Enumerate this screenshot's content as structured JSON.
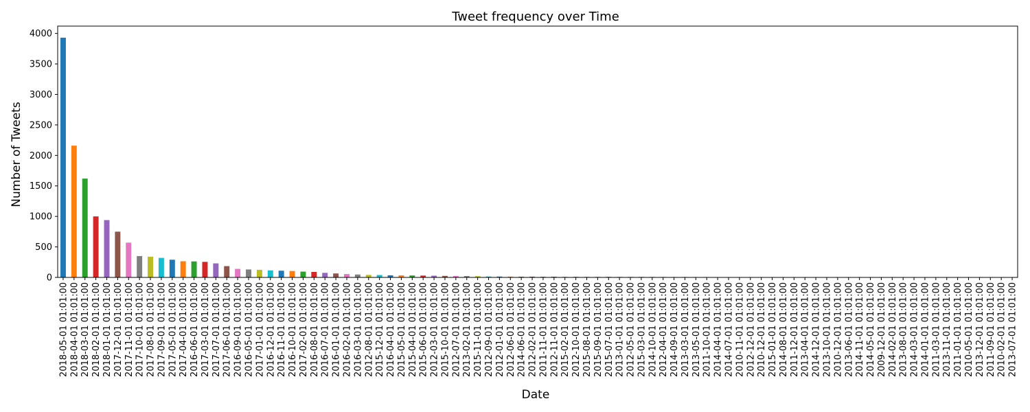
{
  "chart_data": {
    "type": "bar",
    "title": "Tweet frequency over Time",
    "xlabel": "Date",
    "ylabel": "Number of Tweets",
    "ylim": [
      0,
      4120
    ],
    "yticks": [
      0,
      500,
      1000,
      1500,
      2000,
      2500,
      3000,
      3500,
      4000
    ],
    "grid": false,
    "legend": "none",
    "colors": [
      "#1f77b4",
      "#ff7f0e",
      "#2ca02c",
      "#d62728",
      "#9467bd",
      "#8c564b",
      "#e377c2",
      "#7f7f7f",
      "#bcbd22",
      "#17becf"
    ],
    "categories": [
      "2018-05-01 01:01:00",
      "2018-04-01 01:01:00",
      "2018-03-01 01:01:00",
      "2018-02-01 01:01:00",
      "2018-01-01 01:01:00",
      "2017-12-01 01:01:00",
      "2017-11-01 01:01:00",
      "2017-10-01 01:01:00",
      "2017-08-01 01:01:00",
      "2017-09-01 01:01:00",
      "2017-05-01 01:01:00",
      "2017-04-01 01:01:00",
      "2016-06-01 01:01:00",
      "2017-03-01 01:01:00",
      "2017-07-01 01:01:00",
      "2017-06-01 01:01:00",
      "2016-09-01 01:01:00",
      "2016-05-01 01:01:00",
      "2017-01-01 01:01:00",
      "2016-12-01 01:01:00",
      "2016-11-01 01:01:00",
      "2016-10-01 01:01:00",
      "2017-02-01 01:01:00",
      "2016-08-01 01:01:00",
      "2016-07-01 01:01:00",
      "2016-01-01 01:01:00",
      "2016-02-01 01:01:00",
      "2016-03-01 01:01:00",
      "2012-08-01 01:01:00",
      "2015-12-01 01:01:00",
      "2016-04-01 01:01:00",
      "2015-05-01 01:01:00",
      "2015-04-01 01:01:00",
      "2015-06-01 01:01:00",
      "2012-03-01 01:01:00",
      "2015-10-01 01:01:00",
      "2012-07-01 01:01:00",
      "2013-02-01 01:01:00",
      "2015-11-01 01:01:00",
      "2012-09-01 01:01:00",
      "2012-01-01 01:01:00",
      "2012-06-01 01:01:00",
      "2014-06-01 01:01:00",
      "2012-02-01 01:01:00",
      "2011-11-01 01:01:00",
      "2012-11-01 01:01:00",
      "2015-02-01 01:01:00",
      "2012-10-01 01:01:00",
      "2015-08-01 01:01:00",
      "2015-09-01 01:01:00",
      "2015-07-01 01:01:00",
      "2013-01-01 01:01:00",
      "2012-05-01 01:01:00",
      "2015-03-01 01:01:00",
      "2014-10-01 01:01:00",
      "2012-04-01 01:01:00",
      "2014-09-01 01:01:00",
      "2013-03-01 01:01:00",
      "2013-05-01 01:01:00",
      "2011-10-01 01:01:00",
      "2014-04-01 01:01:00",
      "2014-07-01 01:01:00",
      "2010-11-01 01:01:00",
      "2012-12-01 01:01:00",
      "2010-12-01 01:01:00",
      "2015-01-01 01:01:00",
      "2014-08-01 01:01:00",
      "2011-12-01 01:01:00",
      "2013-04-01 01:01:00",
      "2014-12-01 01:01:00",
      "2013-10-01 01:01:00",
      "2010-12-01 01:01:00",
      "2013-06-01 01:01:00",
      "2014-11-01 01:01:00",
      "2014-05-01 01:01:00",
      "2009-12-01 01:01:00",
      "2014-02-01 01:01:00",
      "2013-08-01 01:01:00",
      "2014-03-01 01:01:00",
      "2014-01-01 01:01:00",
      "2011-03-01 01:01:00",
      "2013-11-01 01:01:00",
      "2011-01-01 01:01:00",
      "2010-05-01 01:01:00",
      "2013-12-01 01:01:00",
      "2011-09-01 01:01:00",
      "2010-02-01 01:01:00",
      "2013-07-01 01:01:00"
    ],
    "values": [
      3930,
      2160,
      1620,
      1000,
      940,
      750,
      570,
      350,
      340,
      320,
      290,
      265,
      262,
      255,
      230,
      185,
      140,
      130,
      125,
      115,
      110,
      105,
      95,
      90,
      75,
      65,
      55,
      48,
      42,
      40,
      35,
      33,
      32,
      30,
      28,
      25,
      23,
      22,
      20,
      15,
      14,
      13,
      12,
      12,
      11,
      11,
      10,
      10,
      10,
      9,
      9,
      9,
      8,
      8,
      8,
      7,
      7,
      7,
      6,
      6,
      4,
      3,
      3,
      3,
      3,
      2,
      2,
      2,
      2,
      2,
      2,
      2,
      2,
      2,
      1,
      1,
      1,
      1,
      1,
      1,
      1,
      1,
      1,
      1,
      1,
      1,
      1,
      1
    ]
  }
}
